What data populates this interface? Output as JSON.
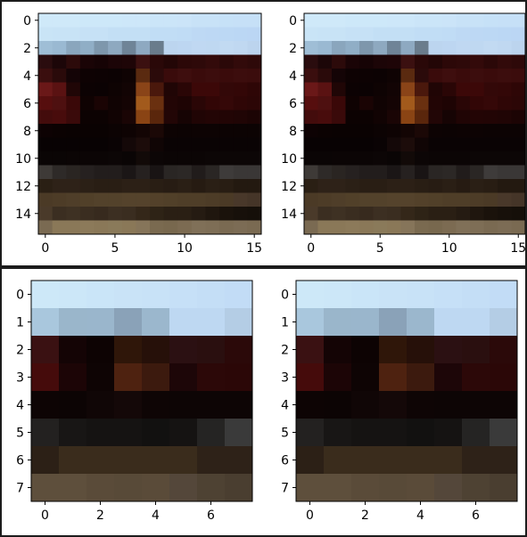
{
  "chart_data": [
    {
      "type": "heatmap",
      "title": "",
      "grid": false,
      "shape": [
        16,
        16
      ],
      "xticks": [
        0,
        5,
        10,
        15
      ],
      "yticks": [
        0,
        2,
        4,
        6,
        8,
        10,
        12,
        14
      ],
      "xlim": [
        -0.5,
        15.5
      ],
      "ylim": [
        15.5,
        -0.5
      ],
      "pixels": [
        [
          "#cfe9f9",
          "#cfe9f9",
          "#cfe9f9",
          "#cde8f9",
          "#cde8f9",
          "#cde8f9",
          "#cde7f9",
          "#cde7f9",
          "#cbe5f8",
          "#cbe5f8",
          "#cbe4f8",
          "#c8e2f7",
          "#c8e2f7",
          "#c6e1f7",
          "#c6e0f7",
          "#c6e0f7"
        ],
        [
          "#c9e4f6",
          "#c8e3f6",
          "#c8e3f6",
          "#c6e1f6",
          "#c6e1f6",
          "#c3dff5",
          "#c3dff5",
          "#c3dff5",
          "#c1ddf5",
          "#c1ddf5",
          "#c0dcf5",
          "#bed9f4",
          "#bdd8f4",
          "#bcd8f4",
          "#bbd7f4",
          "#bbd6f4"
        ],
        [
          "#9fbed6",
          "#9ab9d2",
          "#8aa6bd",
          "#90aec6",
          "#7e97ac",
          "#8ea9c0",
          "#6f8497",
          "#8ea9c1",
          "#6a7c8c",
          "#bcd5ef",
          "#bdd6f1",
          "#c0d8f2",
          "#bfd8f1",
          "#c2daf2",
          "#c0d8f1",
          "#bcd4ee"
        ],
        [
          "#2a0c0e",
          "#1c0608",
          "#2c0a0a",
          "#1a0406",
          "#160305",
          "#1c0507",
          "#1e0507",
          "#3b1010",
          "#2a0808",
          "#230606",
          "#2c0808",
          "#2e0909",
          "#330a0a",
          "#2b0808",
          "#320a0a",
          "#2e0909"
        ],
        [
          "#3a0e0e",
          "#2a0a0a",
          "#140406",
          "#0e0203",
          "#0d0203",
          "#0c0203",
          "#0f0303",
          "#5a2a10",
          "#2b0a0a",
          "#3a0b0b",
          "#3e0e0e",
          "#3a0b0b",
          "#3c0d0d",
          "#3a0b0b",
          "#3c0d0d",
          "#3b0c0c"
        ],
        [
          "#6a1818",
          "#5a1212",
          "#200606",
          "#0c0203",
          "#0b0203",
          "#0e0303",
          "#120404",
          "#8a4418",
          "#4a180c",
          "#200505",
          "#2a0606",
          "#3c0808",
          "#3c0808",
          "#330808",
          "#330707",
          "#2e0606"
        ],
        [
          "#560e0e",
          "#4e1010",
          "#3a0808",
          "#0f0202",
          "#1a0404",
          "#100303",
          "#140404",
          "#a25a1c",
          "#6a3010",
          "#220505",
          "#1e0404",
          "#2a0606",
          "#320606",
          "#350808",
          "#2f0606",
          "#2c0606"
        ],
        [
          "#430c0c",
          "#480c0c",
          "#3a0a0a",
          "#0c0202",
          "#0c0202",
          "#110303",
          "#1a0505",
          "#8a4414",
          "#5a260c",
          "#220606",
          "#160404",
          "#200505",
          "#230505",
          "#220505",
          "#200505",
          "#1c0404"
        ],
        [
          "#0d0203",
          "#0b0202",
          "#0a0202",
          "#0a0202",
          "#0a0202",
          "#0c0303",
          "#0e0303",
          "#130504",
          "#1b0806",
          "#0d0303",
          "#0c0303",
          "#0d0303",
          "#0d0303",
          "#0c0303",
          "#0c0303",
          "#0c0303"
        ],
        [
          "#080203",
          "#080203",
          "#080203",
          "#080203",
          "#080203",
          "#0a0304",
          "#140808",
          "#1c0c0a",
          "#100505",
          "#0a0304",
          "#0a0304",
          "#0a0304",
          "#0a0304",
          "#0a0304",
          "#0a0304",
          "#0a0304"
        ],
        [
          "#0a0505",
          "#0a0505",
          "#0b0505",
          "#0b0505",
          "#0b0505",
          "#0c0606",
          "#0a0505",
          "#120a08",
          "#0c0606",
          "#0b0505",
          "#0b0505",
          "#0b0505",
          "#0c0606",
          "#0c0606",
          "#0c0606",
          "#0c0606"
        ],
        [
          "#3e3a37",
          "#2e2a28",
          "#2a2522",
          "#262120",
          "#221d1c",
          "#221d1c",
          "#1b1616",
          "#262120",
          "#191414",
          "#2a2624",
          "#2c2826",
          "#211c1b",
          "#2a2624",
          "#3e3b3a",
          "#3a3736",
          "#3a3736"
        ],
        [
          "#2a1f14",
          "#2e2218",
          "#2e2218",
          "#2b2016",
          "#291e14",
          "#291e14",
          "#2c2016",
          "#2c2016",
          "#291e14",
          "#271c13",
          "#2a1f15",
          "#261b12",
          "#2a1f15",
          "#281d13",
          "#231910",
          "#231910"
        ],
        [
          "#4b3a26",
          "#4d3c27",
          "#4f3e29",
          "#514029",
          "#53422b",
          "#53422b",
          "#55432c",
          "#55432c",
          "#53412a",
          "#514029",
          "#4f3e28",
          "#4f3e28",
          "#4d3c27",
          "#4b3a26",
          "#49382a",
          "#453528"
        ],
        [
          "#4a3a2a",
          "#3b2e21",
          "#3e3123",
          "#3a2d20",
          "#372a1e",
          "#3c2f22",
          "#3a2d20",
          "#342719",
          "#2e2316",
          "#2a1f14",
          "#2a1f14",
          "#251b12",
          "#1f160e",
          "#1a120b",
          "#17100a",
          "#150f09"
        ],
        [
          "#7a6a52",
          "#8a7858",
          "#8a7858",
          "#8c7a5a",
          "#8a7858",
          "#8a7a5a",
          "#8a7858",
          "#86755a",
          "#7a6a50",
          "#78684e",
          "#7c6b52",
          "#807058",
          "#7e6e56",
          "#7a6a52",
          "#7c6c55",
          "#7a6a52"
        ]
      ]
    },
    {
      "type": "heatmap",
      "title": "",
      "grid": false,
      "shape": [
        16,
        16
      ],
      "xticks": [
        0,
        5,
        10,
        15
      ],
      "yticks": [
        0,
        2,
        4,
        6,
        8,
        10,
        12,
        14
      ],
      "xlim": [
        -0.5,
        15.5
      ],
      "ylim": [
        15.5,
        -0.5
      ],
      "pixels": [
        [
          "#cfe9f9",
          "#cfe9f9",
          "#cfe9f9",
          "#cde8f9",
          "#cde8f9",
          "#cde8f9",
          "#cde7f9",
          "#cde7f9",
          "#cbe5f8",
          "#cbe5f8",
          "#cbe4f8",
          "#c8e2f7",
          "#c8e2f7",
          "#c6e1f7",
          "#c6e0f7",
          "#c6e0f7"
        ],
        [
          "#c9e4f6",
          "#c8e3f6",
          "#c8e3f6",
          "#c6e1f6",
          "#c6e1f6",
          "#c3dff5",
          "#c3dff5",
          "#c3dff5",
          "#c1ddf5",
          "#c1ddf5",
          "#c0dcf5",
          "#bed9f4",
          "#bdd8f4",
          "#bcd8f4",
          "#bbd7f4",
          "#bbd6f4"
        ],
        [
          "#9fbed6",
          "#9ab9d2",
          "#8aa6bd",
          "#90aec6",
          "#7e97ac",
          "#8ea9c0",
          "#6f8497",
          "#8ea9c1",
          "#6a7c8c",
          "#bcd5ef",
          "#bdd6f1",
          "#c0d8f2",
          "#bfd8f1",
          "#c2daf2",
          "#c0d8f1",
          "#bcd4ee"
        ],
        [
          "#2a0c0e",
          "#1c0608",
          "#2c0a0a",
          "#1a0406",
          "#160305",
          "#1c0507",
          "#1e0507",
          "#3b1010",
          "#2a0808",
          "#230606",
          "#2c0808",
          "#2e0909",
          "#330a0a",
          "#2b0808",
          "#320a0a",
          "#2e0909"
        ],
        [
          "#3a0e0e",
          "#2a0a0a",
          "#140406",
          "#0e0203",
          "#0d0203",
          "#0c0203",
          "#0f0303",
          "#5a2a10",
          "#2b0a0a",
          "#3a0b0b",
          "#3e0e0e",
          "#3a0b0b",
          "#3c0d0d",
          "#3a0b0b",
          "#3c0d0d",
          "#3b0c0c"
        ],
        [
          "#6a1818",
          "#5a1212",
          "#200606",
          "#0c0203",
          "#0b0203",
          "#0e0303",
          "#120404",
          "#8a4418",
          "#4a180c",
          "#200505",
          "#2a0606",
          "#3c0808",
          "#3c0808",
          "#330808",
          "#330707",
          "#2e0606"
        ],
        [
          "#560e0e",
          "#4e1010",
          "#3a0808",
          "#0f0202",
          "#1a0404",
          "#100303",
          "#140404",
          "#a25a1c",
          "#6a3010",
          "#220505",
          "#1e0404",
          "#2a0606",
          "#320606",
          "#350808",
          "#2f0606",
          "#2c0606"
        ],
        [
          "#430c0c",
          "#480c0c",
          "#3a0a0a",
          "#0c0202",
          "#0c0202",
          "#110303",
          "#1a0505",
          "#8a4414",
          "#5a260c",
          "#220606",
          "#160404",
          "#200505",
          "#230505",
          "#220505",
          "#200505",
          "#1c0404"
        ],
        [
          "#0d0203",
          "#0b0202",
          "#0a0202",
          "#0a0202",
          "#0a0202",
          "#0c0303",
          "#0e0303",
          "#130504",
          "#1b0806",
          "#0d0303",
          "#0c0303",
          "#0d0303",
          "#0d0303",
          "#0c0303",
          "#0c0303",
          "#0c0303"
        ],
        [
          "#080203",
          "#080203",
          "#080203",
          "#080203",
          "#080203",
          "#0a0304",
          "#140808",
          "#1c0c0a",
          "#100505",
          "#0a0304",
          "#0a0304",
          "#0a0304",
          "#0a0304",
          "#0a0304",
          "#0a0304",
          "#0a0304"
        ],
        [
          "#0a0505",
          "#0a0505",
          "#0b0505",
          "#0b0505",
          "#0b0505",
          "#0c0606",
          "#0a0505",
          "#120a08",
          "#0c0606",
          "#0b0505",
          "#0b0505",
          "#0b0505",
          "#0c0606",
          "#0c0606",
          "#0c0606",
          "#0c0606"
        ],
        [
          "#3e3a37",
          "#2e2a28",
          "#2a2522",
          "#262120",
          "#221d1c",
          "#221d1c",
          "#1b1616",
          "#262120",
          "#191414",
          "#2a2624",
          "#2c2826",
          "#211c1b",
          "#2a2624",
          "#3e3b3a",
          "#3a3736",
          "#3a3736"
        ],
        [
          "#2a1f14",
          "#2e2218",
          "#2e2218",
          "#2b2016",
          "#291e14",
          "#291e14",
          "#2c2016",
          "#2c2016",
          "#291e14",
          "#271c13",
          "#2a1f15",
          "#261b12",
          "#2a1f15",
          "#281d13",
          "#231910",
          "#231910"
        ],
        [
          "#4b3a26",
          "#4d3c27",
          "#4f3e29",
          "#514029",
          "#53422b",
          "#53422b",
          "#55432c",
          "#55432c",
          "#53412a",
          "#514029",
          "#4f3e28",
          "#4f3e28",
          "#4d3c27",
          "#4b3a26",
          "#49382a",
          "#453528"
        ],
        [
          "#4a3a2a",
          "#3b2e21",
          "#3e3123",
          "#3a2d20",
          "#372a1e",
          "#3c2f22",
          "#3a2d20",
          "#342719",
          "#2e2316",
          "#2a1f14",
          "#2a1f14",
          "#251b12",
          "#1f160e",
          "#1a120b",
          "#17100a",
          "#150f09"
        ],
        [
          "#7a6a52",
          "#8a7858",
          "#8a7858",
          "#8c7a5a",
          "#8a7858",
          "#8a7a5a",
          "#8a7858",
          "#86755a",
          "#7a6a50",
          "#78684e",
          "#7c6b52",
          "#807058",
          "#7e6e56",
          "#7a6a52",
          "#7c6c55",
          "#7a6a52"
        ]
      ]
    },
    {
      "type": "heatmap",
      "title": "",
      "grid": false,
      "shape": [
        8,
        8
      ],
      "xticks": [
        0,
        2,
        4,
        6
      ],
      "yticks": [
        0,
        1,
        2,
        3,
        4,
        5,
        6,
        7
      ],
      "xlim": [
        -0.5,
        7.5
      ],
      "ylim": [
        7.5,
        -0.5
      ],
      "pixels": [
        [
          "#cde8f8",
          "#cce7f8",
          "#cae5f8",
          "#c9e3f7",
          "#c8e2f7",
          "#c6e0f7",
          "#c4def6",
          "#c2dcf6"
        ],
        [
          "#a9c7dd",
          "#9ab6cb",
          "#9ab6cc",
          "#8aa2b8",
          "#9bb7cd",
          "#bed8f2",
          "#bed8f2",
          "#b4cde5"
        ],
        [
          "#3a1112",
          "#140405",
          "#0d0303",
          "#2f1609",
          "#261009",
          "#2b1012",
          "#2a0f0f",
          "#2b0909"
        ],
        [
          "#450b0b",
          "#1c0506",
          "#0e0404",
          "#4e2210",
          "#3c1a0e",
          "#1d0608",
          "#2c0808",
          "#2b0707"
        ],
        [
          "#0d0404",
          "#0c0404",
          "#100606",
          "#140808",
          "#0e0505",
          "#0d0505",
          "#0d0505",
          "#0d0505"
        ],
        [
          "#232120",
          "#181615",
          "#151312",
          "#151312",
          "#121110",
          "#151312",
          "#252423",
          "#3a3a3a"
        ],
        [
          "#2c2016",
          "#3a2c1c",
          "#3a2c1c",
          "#3a2c1c",
          "#3a2c1c",
          "#3a2c1c",
          "#2e2218",
          "#2e2218"
        ],
        [
          "#5e4f3c",
          "#5e4f3c",
          "#5a4b39",
          "#584a38",
          "#5a4b39",
          "#54473a",
          "#4e4233",
          "#4a3e30"
        ]
      ]
    },
    {
      "type": "heatmap",
      "title": "",
      "grid": false,
      "shape": [
        8,
        8
      ],
      "xticks": [
        0,
        2,
        4,
        6
      ],
      "yticks": [
        0,
        1,
        2,
        3,
        4,
        5,
        6,
        7
      ],
      "xlim": [
        -0.5,
        7.5
      ],
      "ylim": [
        7.5,
        -0.5
      ],
      "pixels": [
        [
          "#cde8f8",
          "#cce7f8",
          "#cae5f8",
          "#c9e3f7",
          "#c8e2f7",
          "#c6e0f7",
          "#c4def6",
          "#c2dcf6"
        ],
        [
          "#a9c7dd",
          "#9ab6cb",
          "#9ab6cc",
          "#8aa2b8",
          "#9bb7cd",
          "#bed8f2",
          "#bed8f2",
          "#b4cde5"
        ],
        [
          "#3a1112",
          "#140405",
          "#0d0303",
          "#2f1609",
          "#261009",
          "#2b1012",
          "#2a0f0f",
          "#2b0909"
        ],
        [
          "#450b0b",
          "#1c0506",
          "#0e0404",
          "#4e2210",
          "#3c1a0e",
          "#1d0608",
          "#2c0808",
          "#2b0707"
        ],
        [
          "#0d0404",
          "#0c0404",
          "#100606",
          "#140808",
          "#0e0505",
          "#0d0505",
          "#0d0505",
          "#0d0505"
        ],
        [
          "#232120",
          "#181615",
          "#151312",
          "#151312",
          "#121110",
          "#151312",
          "#252423",
          "#3a3a3a"
        ],
        [
          "#2c2016",
          "#3a2c1c",
          "#3a2c1c",
          "#3a2c1c",
          "#3a2c1c",
          "#3a2c1c",
          "#2e2218",
          "#2e2218"
        ],
        [
          "#5e4f3c",
          "#5e4f3c",
          "#5a4b39",
          "#584a38",
          "#5a4b39",
          "#54473a",
          "#4e4233",
          "#4a3e30"
        ]
      ]
    }
  ]
}
